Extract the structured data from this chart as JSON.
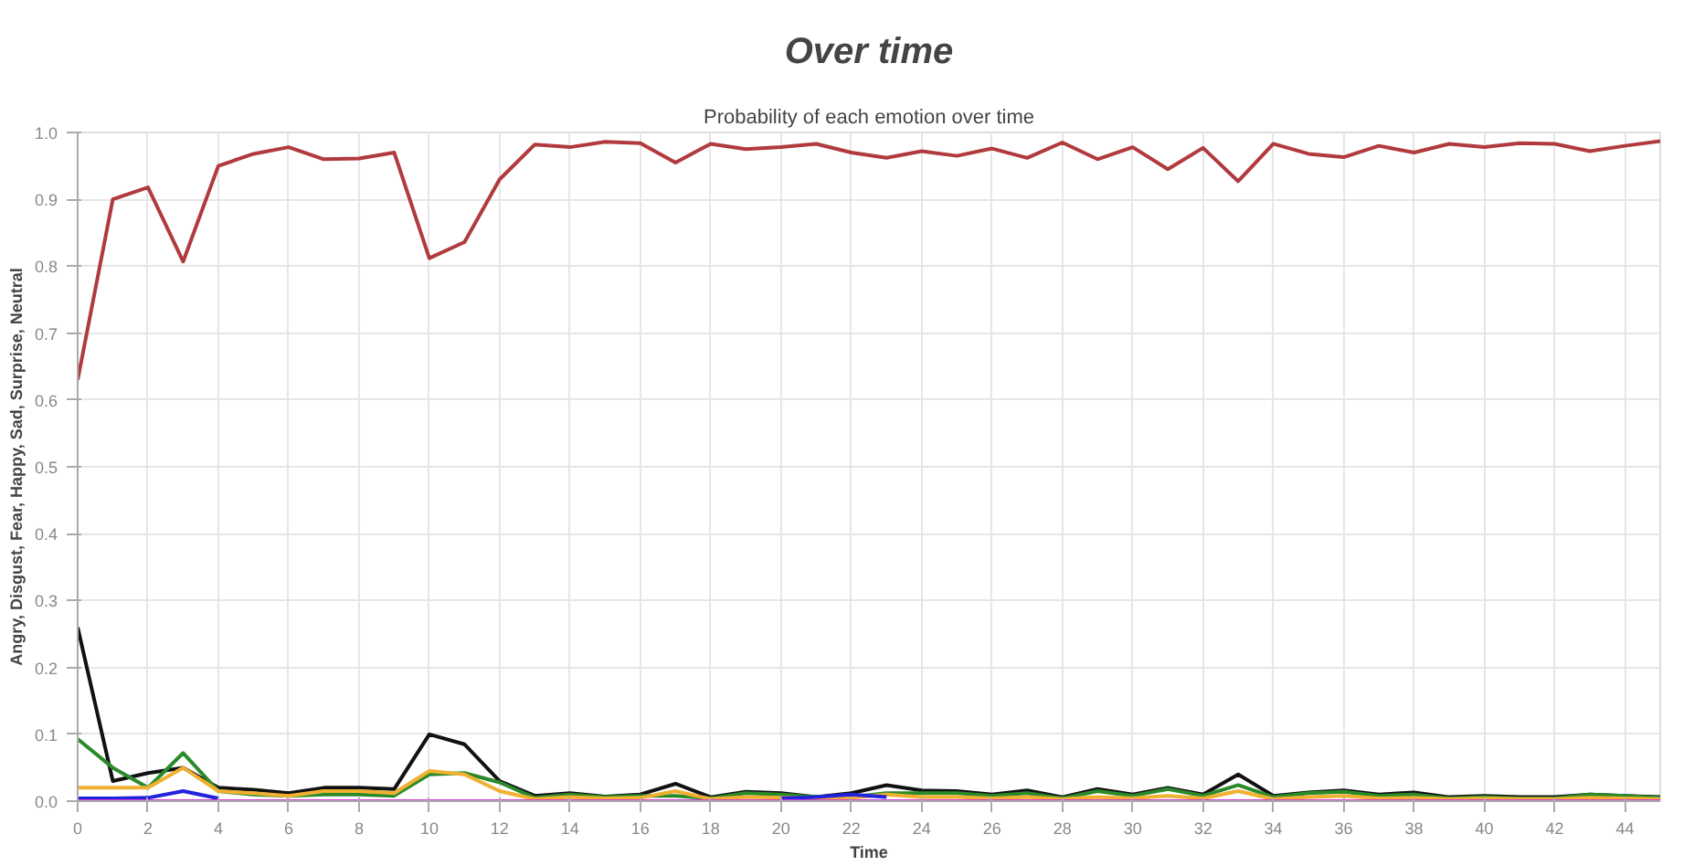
{
  "chart_data": {
    "type": "line",
    "title": "Over time",
    "subtitle": "Probability of each emotion over time",
    "xlabel": "Time",
    "ylabel": "Angry, Disgust, Fear, Happy, Sad, Surprise, Neutral",
    "x": [
      0,
      1,
      2,
      3,
      4,
      5,
      6,
      7,
      8,
      9,
      10,
      11,
      12,
      13,
      14,
      15,
      16,
      17,
      18,
      19,
      20,
      21,
      22,
      23,
      24,
      25,
      26,
      27,
      28,
      29,
      30,
      31,
      32,
      33,
      34,
      35,
      36,
      37,
      38,
      39,
      40,
      41,
      42,
      43,
      44,
      45
    ],
    "xlim": [
      0,
      45
    ],
    "xticks": [
      0,
      2,
      4,
      6,
      8,
      10,
      12,
      14,
      16,
      18,
      20,
      22,
      24,
      26,
      28,
      30,
      32,
      34,
      36,
      38,
      40,
      42,
      44
    ],
    "ylim": [
      0,
      1
    ],
    "yticks": [
      {
        "value": 0,
        "label": "0.0"
      },
      0.1,
      0.2,
      0.3,
      0.4,
      0.5,
      0.6,
      0.7,
      0.8,
      0.9,
      {
        "value": 1,
        "label": "1.0"
      }
    ],
    "grid": true,
    "marker": "none",
    "line_style": "solid",
    "series": [
      {
        "color": "#d63ad6",
        "values": [
          0.0,
          0.0,
          0.0,
          0.0,
          0.0,
          0.0,
          0.0,
          0.0,
          0.0,
          0.0,
          0.0,
          0.0,
          0.0,
          0.0,
          0.0,
          0.0,
          0.0,
          0.0,
          0.0,
          0.0,
          0.0,
          0.0,
          0.0,
          0.0,
          0.0,
          0.0,
          0.0,
          0.0,
          0.0,
          0.0,
          0.0,
          0.0,
          0.0,
          0.0,
          0.0,
          0.0,
          0.0,
          0.0,
          0.0,
          0.0,
          0.0,
          0.0,
          0.0,
          0.0,
          0.0,
          0.0
        ]
      },
      {
        "color": "#2222dd",
        "values": [
          0.004,
          0.004,
          0.005,
          0.015,
          0.004,
          null,
          null,
          null,
          null,
          null,
          null,
          null,
          null,
          null,
          null,
          null,
          null,
          null,
          null,
          null,
          0.004,
          0.006,
          0.01,
          0.006,
          null,
          null,
          null,
          null,
          null,
          null,
          null,
          null,
          null,
          null,
          null,
          null,
          null,
          null,
          null,
          null,
          null,
          null,
          null,
          null,
          null,
          null
        ]
      },
      {
        "color": "#f0b030",
        "values": [
          0.02,
          0.02,
          0.02,
          0.05,
          0.015,
          0.012,
          0.008,
          0.015,
          0.015,
          0.012,
          0.045,
          0.04,
          0.015,
          0.003,
          0.006,
          0.004,
          0.005,
          0.015,
          0.003,
          0.006,
          0.005,
          0.004,
          0.005,
          0.01,
          0.006,
          0.006,
          0.004,
          0.006,
          0.003,
          0.006,
          0.004,
          0.008,
          0.004,
          0.015,
          0.003,
          0.006,
          0.008,
          0.004,
          0.005,
          0.003,
          0.004,
          0.003,
          0.003,
          0.005,
          0.004,
          0.003
        ]
      },
      {
        "color": "#2a8a2a",
        "values": [
          0.093,
          0.05,
          0.02,
          0.072,
          0.015,
          0.01,
          0.008,
          0.01,
          0.01,
          0.008,
          0.04,
          0.042,
          0.028,
          0.005,
          0.01,
          0.006,
          0.008,
          0.008,
          0.004,
          0.012,
          0.01,
          0.006,
          0.006,
          0.012,
          0.012,
          0.012,
          0.008,
          0.012,
          0.004,
          0.015,
          0.008,
          0.018,
          0.008,
          0.024,
          0.006,
          0.012,
          0.014,
          0.008,
          0.01,
          0.004,
          0.006,
          0.004,
          0.004,
          0.01,
          0.008,
          0.005
        ]
      },
      {
        "color": "#111111",
        "values": [
          0.26,
          0.03,
          0.042,
          0.05,
          0.02,
          0.017,
          0.012,
          0.02,
          0.02,
          0.018,
          0.1,
          0.085,
          0.03,
          0.008,
          0.012,
          0.007,
          0.01,
          0.026,
          0.006,
          0.014,
          0.012,
          0.006,
          0.012,
          0.024,
          0.016,
          0.015,
          0.01,
          0.016,
          0.006,
          0.018,
          0.01,
          0.02,
          0.01,
          0.04,
          0.008,
          0.013,
          0.016,
          0.01,
          0.013,
          0.006,
          0.008,
          0.006,
          0.006,
          0.01,
          0.008,
          0.006
        ]
      },
      {
        "color": "#b03a3e",
        "values": [
          0.63,
          0.9,
          0.918,
          0.807,
          0.95,
          0.968,
          0.978,
          0.96,
          0.961,
          0.97,
          0.812,
          0.836,
          0.93,
          0.982,
          0.978,
          0.986,
          0.984,
          0.955,
          0.983,
          0.975,
          0.978,
          0.983,
          0.97,
          0.962,
          0.972,
          0.965,
          0.976,
          0.962,
          0.985,
          0.96,
          0.978,
          0.945,
          0.977,
          0.927,
          0.983,
          0.968,
          0.963,
          0.98,
          0.97,
          0.983,
          0.978,
          0.984,
          0.983,
          0.972,
          0.98,
          0.987
        ]
      }
    ]
  }
}
